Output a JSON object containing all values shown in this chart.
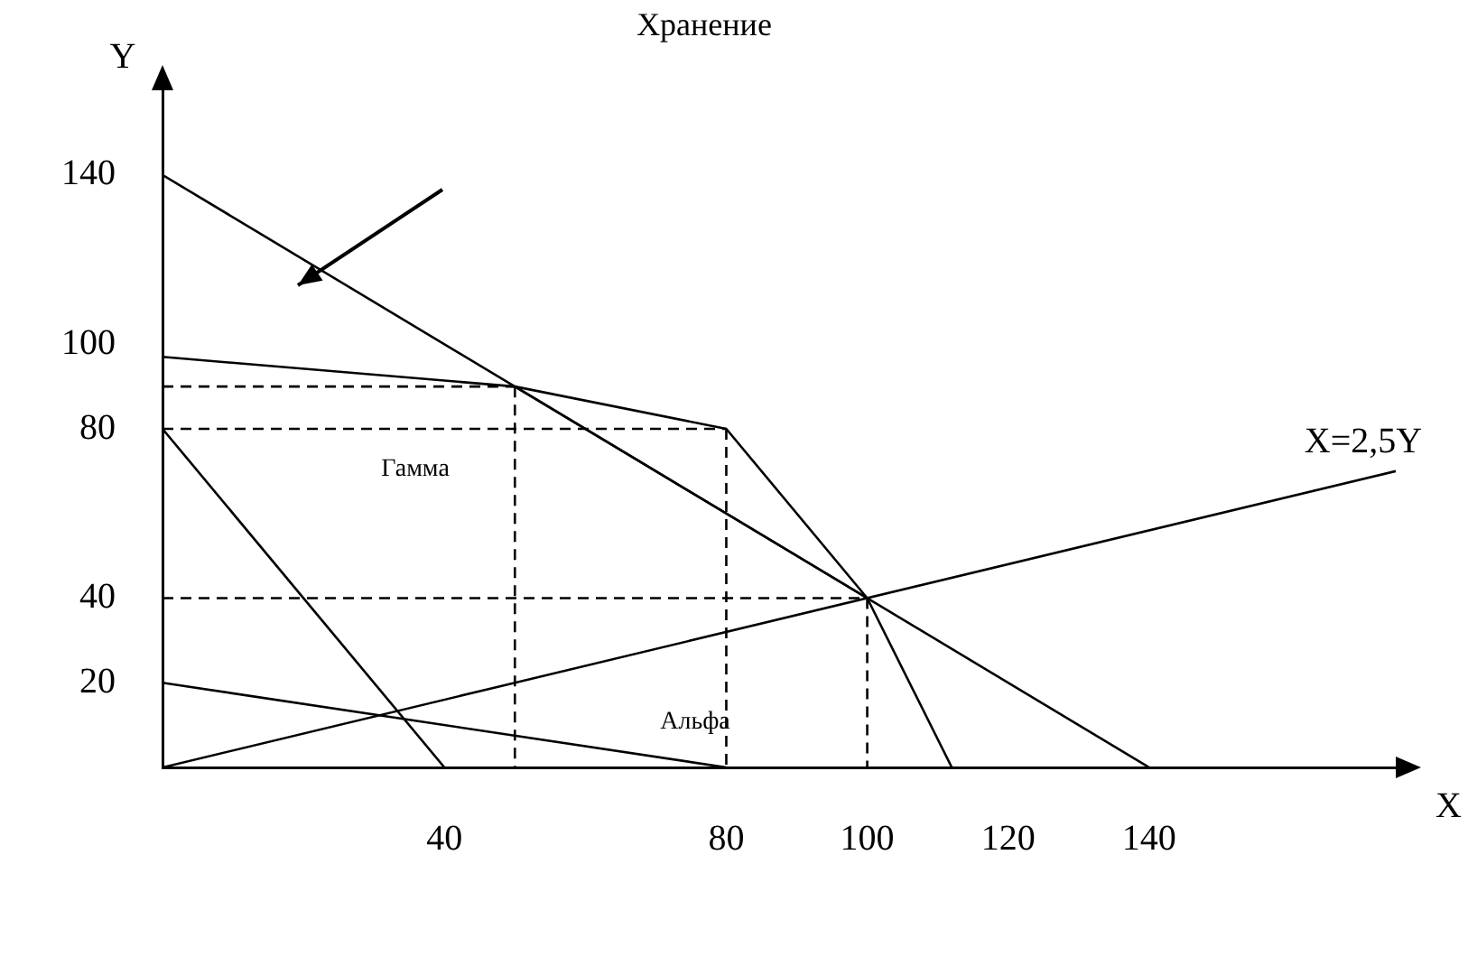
{
  "chart_data": {
    "type": "line",
    "xlabel": "X",
    "ylabel": "Y",
    "xlim": [
      0,
      175
    ],
    "ylim": [
      0,
      160
    ],
    "xticks": [
      40,
      80,
      100,
      120,
      140
    ],
    "yticks": [
      20,
      40,
      80,
      100,
      140
    ],
    "grid": false,
    "legend": false,
    "marker": "none",
    "series": [
      {
        "color": "#000000",
        "x": [
          0,
          140
        ],
        "values": [
          140,
          0
        ]
      },
      {
        "color": "#000000",
        "x": [
          0,
          50,
          100,
          112
        ],
        "values": [
          97,
          90,
          40,
          0
        ]
      },
      {
        "color": "#000000",
        "x": [
          50,
          80,
          100
        ],
        "values": [
          90,
          80,
          40
        ]
      },
      {
        "color": "#000000",
        "x": [
          0,
          175
        ],
        "values": [
          0,
          70
        ]
      },
      {
        "color": "#000000",
        "x": [
          0,
          40
        ],
        "values": [
          80,
          0
        ]
      },
      {
        "color": "#000000",
        "x": [
          0,
          80
        ],
        "values": [
          20,
          0
        ]
      },
      {
        "color": "#000000",
        "line_style": "dashed",
        "x": [
          0,
          50
        ],
        "values": [
          90,
          90
        ]
      },
      {
        "color": "#000000",
        "line_style": "dashed",
        "x": [
          50,
          50
        ],
        "values": [
          90,
          0
        ]
      },
      {
        "color": "#000000",
        "line_style": "dashed",
        "x": [
          0,
          80
        ],
        "values": [
          80,
          80
        ]
      },
      {
        "color": "#000000",
        "line_style": "dashed",
        "x": [
          80,
          80
        ],
        "values": [
          80,
          0
        ]
      },
      {
        "color": "#000000",
        "line_style": "dashed",
        "x": [
          0,
          100
        ],
        "values": [
          40,
          40
        ]
      },
      {
        "color": "#000000",
        "line_style": "dashed",
        "x": [
          100,
          100
        ],
        "values": [
          40,
          0
        ]
      }
    ],
    "annotations": [
      "Хранение",
      "X=2,5Y",
      "Гамма",
      "Альфа"
    ]
  }
}
